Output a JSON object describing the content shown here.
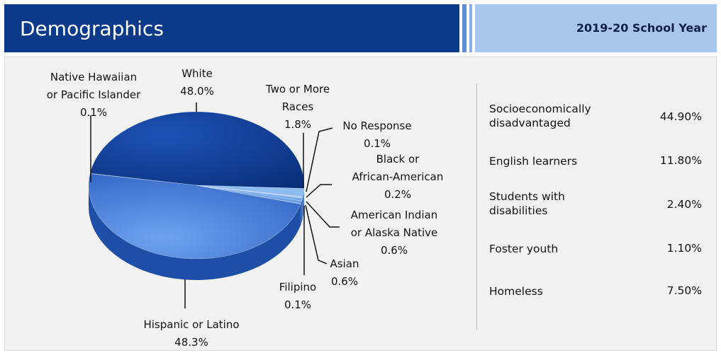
{
  "header": {
    "title": "Demographics",
    "school_year": "2019-20 School Year"
  },
  "colors": {
    "header_dark": "#0c3a8b",
    "header_light": "#a9c6ea",
    "pie_dark": "#0f3f96",
    "pie_medium": "#3e78da",
    "pie_light": "#7fb1ec"
  },
  "chart_data": {
    "type": "pie",
    "slices": [
      {
        "label": "White",
        "label_lines": [
          "White",
          "48.0%"
        ],
        "value": 48.0
      },
      {
        "label": "Native Hawaiian or Pacific Islander",
        "label_lines": [
          "Native Hawaiian",
          "or Pacific Islander",
          "0.1%"
        ],
        "value": 0.1
      },
      {
        "label": "Hispanic or Latino",
        "label_lines": [
          "Hispanic or Latino",
          "48.3%"
        ],
        "value": 48.3
      },
      {
        "label": "Filipino",
        "label_lines": [
          "Filipino",
          "0.1%"
        ],
        "value": 0.1
      },
      {
        "label": "Asian",
        "label_lines": [
          "Asian",
          "0.6%"
        ],
        "value": 0.6
      },
      {
        "label": "American Indian or Alaska Native",
        "label_lines": [
          "American Indian",
          "or Alaska Native",
          "0.6%"
        ],
        "value": 0.6
      },
      {
        "label": "Black or African-American",
        "label_lines": [
          "Black or",
          "African-American",
          "0.2%"
        ],
        "value": 0.2
      },
      {
        "label": "No Response",
        "label_lines": [
          "No Response",
          "0.1%"
        ],
        "value": 0.1
      },
      {
        "label": "Two or More Races",
        "label_lines": [
          "Two or More",
          "Races",
          "1.8%"
        ],
        "value": 1.8
      }
    ]
  },
  "stats": [
    {
      "label": "Socioeconomically disadvantaged",
      "value": "44.90%"
    },
    {
      "label": "English learners",
      "value": "11.80%"
    },
    {
      "label": "Students with disabilities",
      "value": "2.40%"
    },
    {
      "label": "Foster youth",
      "value": "1.10%"
    },
    {
      "label": "Homeless",
      "value": "7.50%"
    }
  ]
}
